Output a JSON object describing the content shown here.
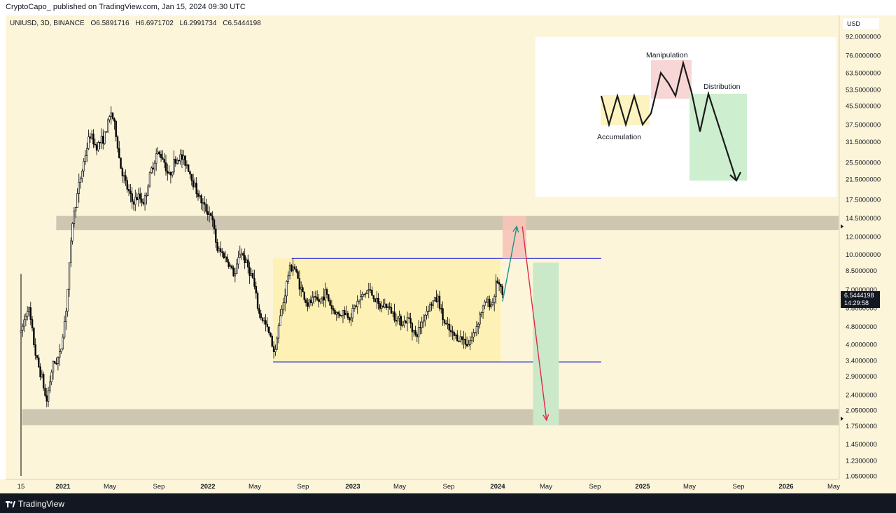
{
  "header": {
    "publisher_line": "CryptoCapo_ published on TradingView.com, Jan 15, 2024 09:30 UTC"
  },
  "legend": {
    "symbol": "UNIUSD, 3D, BINANCE",
    "open": "O6.5891716",
    "high": "H6.6971702",
    "low": "L6.2991734",
    "close": "C6.5444198"
  },
  "price_scale": {
    "currency": "USD",
    "current_price": "6.5444198",
    "countdown": "14:29:58"
  },
  "footer": {
    "brand": "TradingView"
  },
  "colors": {
    "chart_bg": "#fdf5d9",
    "range_box": "#fef1b5",
    "support_zone": "#cdc6b0",
    "range_line": "#2f2fd6",
    "green_box": "#cbe8c9",
    "red_box": "#f6c4b8",
    "teal_arrow": "#13968a",
    "red_arrow": "#e3284a",
    "candle": "#000000"
  },
  "chart_data": {
    "type": "candlestick",
    "scale": "log",
    "ylim": [
      1.05,
      92
    ],
    "yticks": [
      "92.0000000",
      "76.0000000",
      "63.5000000",
      "53.5000000",
      "45.5000000",
      "37.5000000",
      "31.5000000",
      "25.5000000",
      "21.5000000",
      "17.5000000",
      "14.5000000",
      "12.0000000",
      "10.0000000",
      "8.5000000",
      "7.0000000",
      "5.8000000",
      "4.8000000",
      "4.0000000",
      "3.4000000",
      "2.9000000",
      "2.4000000",
      "2.0500000",
      "1.7500000",
      "1.4500000",
      "1.2300000",
      "1.0500000"
    ],
    "xticks": [
      "15",
      "2021",
      "May",
      "Sep",
      "2022",
      "May",
      "Sep",
      "2023",
      "May",
      "Sep",
      "2024",
      "May",
      "Sep",
      "2025",
      "May",
      "Sep",
      "2026",
      "May"
    ],
    "bold_xticks": [
      "2021",
      "2022",
      "2023",
      "2024",
      "2025",
      "2026"
    ],
    "price_path": [
      [
        "2020-09-17",
        4.5
      ],
      [
        "2020-10-05",
        6.0
      ],
      [
        "2020-10-25",
        3.5
      ],
      [
        "2020-11-10",
        2.8
      ],
      [
        "2020-11-20",
        2.2
      ],
      [
        "2020-12-05",
        3.2
      ],
      [
        "2020-12-25",
        3.6
      ],
      [
        "2021-01-10",
        6.0
      ],
      [
        "2021-01-25",
        14.0
      ],
      [
        "2021-02-10",
        20.0
      ],
      [
        "2021-02-25",
        27.0
      ],
      [
        "2021-03-10",
        34.0
      ],
      [
        "2021-03-25",
        30.0
      ],
      [
        "2021-04-15",
        33.0
      ],
      [
        "2021-05-03",
        43.0
      ],
      [
        "2021-05-15",
        34.0
      ],
      [
        "2021-05-25",
        25.0
      ],
      [
        "2021-06-10",
        20.0
      ],
      [
        "2021-06-25",
        17.0
      ],
      [
        "2021-07-10",
        18.0
      ],
      [
        "2021-07-25",
        17.0
      ],
      [
        "2021-08-10",
        23.0
      ],
      [
        "2021-08-25",
        28.0
      ],
      [
        "2021-09-10",
        27.0
      ],
      [
        "2021-09-25",
        22.0
      ],
      [
        "2021-10-10",
        26.0
      ],
      [
        "2021-10-25",
        27.0
      ],
      [
        "2021-11-10",
        25.0
      ],
      [
        "2021-11-25",
        21.0
      ],
      [
        "2021-12-10",
        18.0
      ],
      [
        "2021-12-25",
        16.0
      ],
      [
        "2022-01-10",
        15.0
      ],
      [
        "2022-01-25",
        10.5
      ],
      [
        "2022-02-10",
        10.0
      ],
      [
        "2022-02-25",
        9.0
      ],
      [
        "2022-03-10",
        8.0
      ],
      [
        "2022-03-25",
        10.5
      ],
      [
        "2022-04-10",
        9.0
      ],
      [
        "2022-04-25",
        7.8
      ],
      [
        "2022-05-10",
        5.5
      ],
      [
        "2022-05-25",
        5.0
      ],
      [
        "2022-06-10",
        4.2
      ],
      [
        "2022-06-20",
        3.6
      ],
      [
        "2022-06-25",
        4.5
      ],
      [
        "2022-07-10",
        6.0
      ],
      [
        "2022-07-25",
        8.5
      ],
      [
        "2022-08-05",
        9.0
      ],
      [
        "2022-08-25",
        7.0
      ],
      [
        "2022-09-10",
        6.0
      ],
      [
        "2022-09-25",
        6.3
      ],
      [
        "2022-10-10",
        6.2
      ],
      [
        "2022-10-25",
        6.8
      ],
      [
        "2022-11-10",
        5.8
      ],
      [
        "2022-11-25",
        5.4
      ],
      [
        "2022-12-10",
        5.6
      ],
      [
        "2022-12-25",
        5.3
      ],
      [
        "2023-01-10",
        6.0
      ],
      [
        "2023-01-25",
        6.5
      ],
      [
        "2023-02-10",
        7.0
      ],
      [
        "2023-02-25",
        6.5
      ],
      [
        "2023-03-10",
        5.8
      ],
      [
        "2023-03-25",
        6.0
      ],
      [
        "2023-04-10",
        5.6
      ],
      [
        "2023-04-25",
        5.2
      ],
      [
        "2023-05-10",
        5.0
      ],
      [
        "2023-05-25",
        5.2
      ],
      [
        "2023-06-10",
        4.3
      ],
      [
        "2023-06-25",
        5.0
      ],
      [
        "2023-07-10",
        5.8
      ],
      [
        "2023-07-25",
        6.2
      ],
      [
        "2023-08-05",
        6.4
      ],
      [
        "2023-08-20",
        5.0
      ],
      [
        "2023-09-10",
        4.4
      ],
      [
        "2023-09-25",
        4.3
      ],
      [
        "2023-10-10",
        4.2
      ],
      [
        "2023-10-20",
        4.0
      ],
      [
        "2023-11-05",
        4.5
      ],
      [
        "2023-11-20",
        5.5
      ],
      [
        "2023-12-05",
        6.2
      ],
      [
        "2023-12-20",
        6.0
      ],
      [
        "2024-01-01",
        7.8
      ],
      [
        "2024-01-15",
        6.54
      ]
    ],
    "zones": [
      {
        "name": "upper_supply",
        "low": 12.8,
        "high": 14.8,
        "from": "2020-12-15",
        "to": "2026-05-15"
      },
      {
        "name": "lower_demand",
        "low": 1.76,
        "high": 2.07,
        "from": "2020-09-20",
        "to": "2026-05-15"
      }
    ],
    "range": {
      "top": 9.6,
      "bottom": 3.35,
      "box_from": "2022-06-15",
      "box_to": "2024-01-10",
      "line_from": "2022-06-15",
      "line_to": "2024-09-20",
      "top_line_from": "2022-08-01"
    },
    "scenario": {
      "red_target_box": {
        "from": "2024-01-15",
        "to": "2024-03-15",
        "low": 9.6,
        "high": 14.8
      },
      "green_target_box": {
        "from": "2024-04-01",
        "to": "2024-06-05",
        "low": 1.76,
        "high": 9.2
      },
      "up_arrow": [
        [
          "2024-01-15",
          6.2
        ],
        [
          "2024-02-20",
          13.3
        ]
      ],
      "down_arrow": [
        [
          "2024-03-05",
          13.3
        ],
        [
          "2024-05-05",
          1.85
        ]
      ]
    },
    "inset_diagram": {
      "labels": [
        "Accumulation",
        "Manipulation",
        "Distribution"
      ]
    }
  }
}
